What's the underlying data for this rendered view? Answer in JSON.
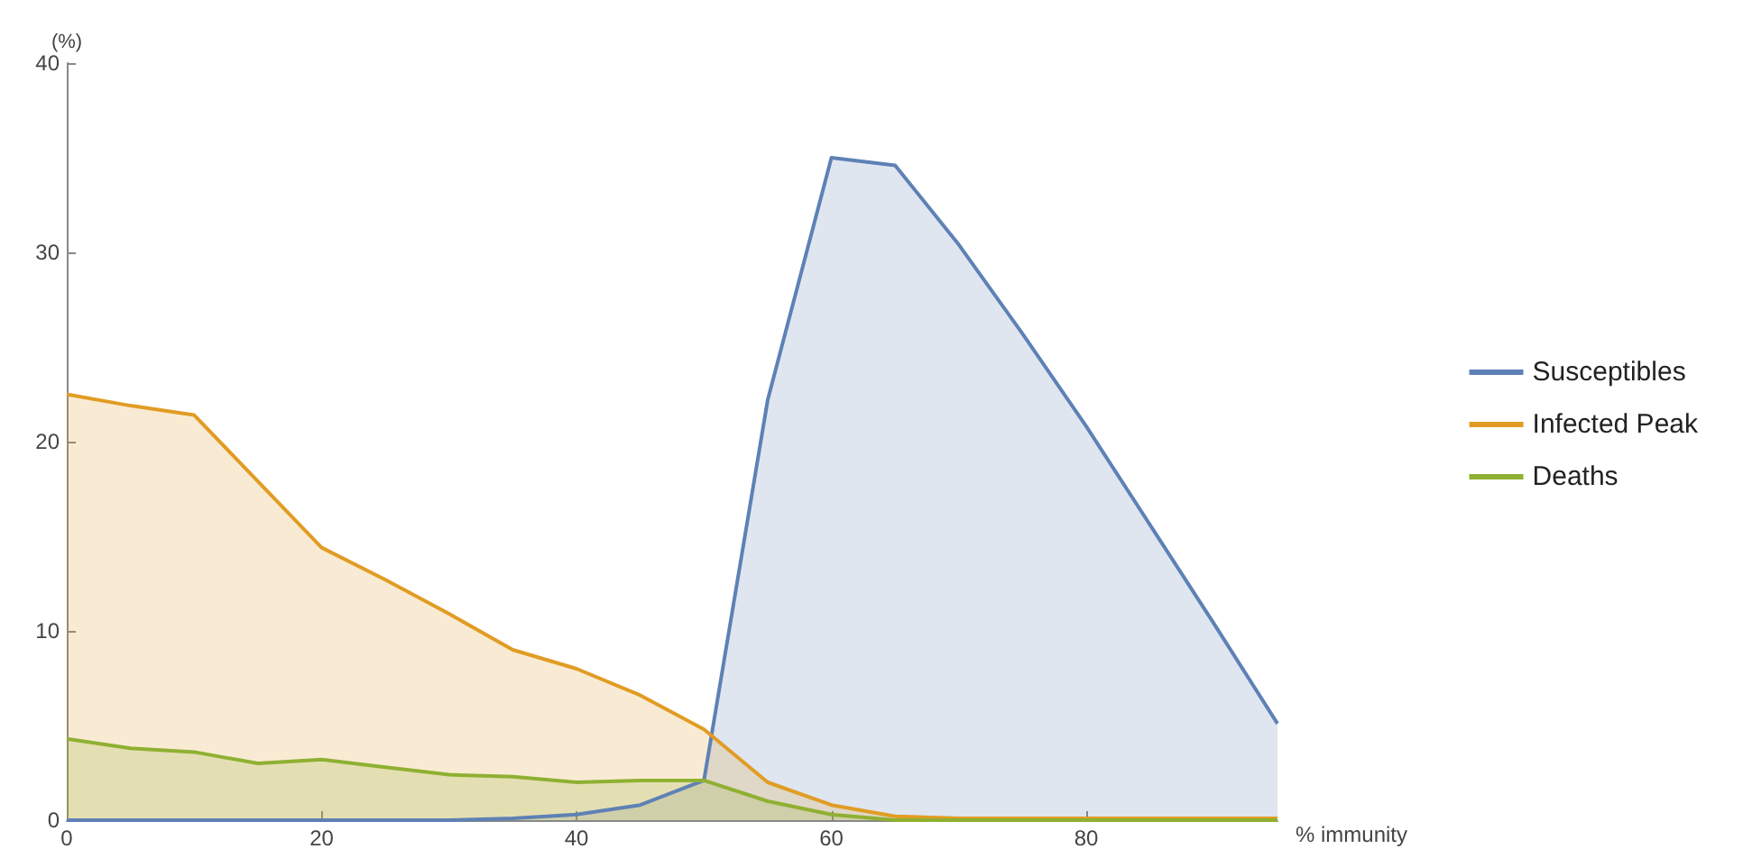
{
  "chart_data": {
    "type": "area",
    "xlabel": "% immunity",
    "ylabel": "(%)",
    "x": [
      0,
      5,
      10,
      15,
      20,
      25,
      30,
      35,
      40,
      45,
      50,
      55,
      60,
      65,
      70,
      75,
      80,
      85,
      90,
      95
    ],
    "series": [
      {
        "name": "Susceptibles",
        "color": "#5e81b5",
        "values": [
          0,
          0,
          0,
          0,
          0,
          0,
          0,
          0.1,
          0.3,
          0.8,
          2.1,
          22.2,
          35,
          34.6,
          30.4,
          25.7,
          20.8,
          15.6,
          10.4,
          5.1
        ]
      },
      {
        "name": "Infected Peak",
        "color": "#e19c24",
        "values": [
          22.5,
          21.9,
          21.4,
          17.9,
          14.4,
          12.7,
          10.9,
          9.0,
          8.0,
          6.6,
          4.8,
          2.0,
          0.8,
          0.2,
          0.1,
          0.1,
          0.1,
          0.1,
          0.1,
          0.1
        ]
      },
      {
        "name": "Deaths",
        "color": "#8fb032",
        "values": [
          4.3,
          3.8,
          3.6,
          3.0,
          3.2,
          2.8,
          2.4,
          2.3,
          2.0,
          2.1,
          2.1,
          1.0,
          0.3,
          0,
          0,
          0,
          0,
          0,
          0,
          0
        ]
      }
    ],
    "xlim": [
      0,
      95
    ],
    "xticks": [
      0,
      20,
      40,
      60,
      80
    ],
    "ylim": [
      0,
      40
    ],
    "yticks": [
      0,
      10,
      20,
      30,
      40
    ],
    "grid": false,
    "legend": "right",
    "marker": "none",
    "line_style": "solid"
  }
}
